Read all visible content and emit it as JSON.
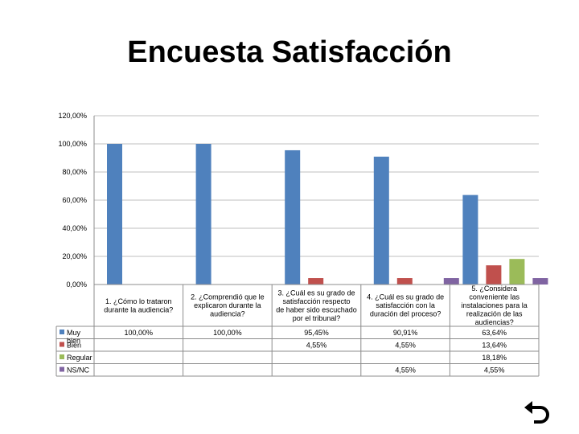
{
  "title": "Encuesta Satisfacción",
  "chart_data": {
    "type": "bar",
    "title": "",
    "xlabel": "",
    "ylabel": "",
    "ylim": [
      0,
      120
    ],
    "y_ticks": [
      "0,00%",
      "20,00%",
      "40,00%",
      "60,00%",
      "80,00%",
      "100,00%",
      "120,00%"
    ],
    "grid": true,
    "legend_placement": "data-table-left",
    "categories": [
      "1. ¿Cómo lo trataron durante la audiencia?",
      "2. ¿Comprendió que le explicaron durante la audiencia?",
      "3. ¿Cuál es su grado de satisfacción respecto de haber sido escuchado por el tribunal?",
      "4. ¿Cuál es su grado de satisfacción con la duración del proceso?",
      "5. ¿Considera conveniente las instalaciones para la realización de las audiencias?"
    ],
    "series": [
      {
        "name": "Muy bien",
        "color": "#4F81BD",
        "values": [
          100,
          100,
          95.45,
          90.91,
          63.64
        ],
        "labels": [
          "100,00%",
          "100,00%",
          "95,45%",
          "90,91%",
          "63,64%"
        ]
      },
      {
        "name": "Bien",
        "color": "#C0504D",
        "values": [
          null,
          null,
          4.55,
          4.55,
          13.64
        ],
        "labels": [
          "",
          "",
          "4,55%",
          "4,55%",
          "13,64%"
        ]
      },
      {
        "name": "Regular",
        "color": "#9BBB59",
        "values": [
          null,
          null,
          null,
          null,
          18.18
        ],
        "labels": [
          "",
          "",
          "",
          "",
          "18,18%"
        ]
      },
      {
        "name": "NS/NC",
        "color": "#8064A2",
        "values": [
          null,
          null,
          null,
          4.55,
          4.55
        ],
        "labels": [
          "",
          "",
          "",
          "4,55%",
          "4,55%"
        ]
      }
    ]
  },
  "icons": {
    "back": "return-arrow-icon"
  }
}
